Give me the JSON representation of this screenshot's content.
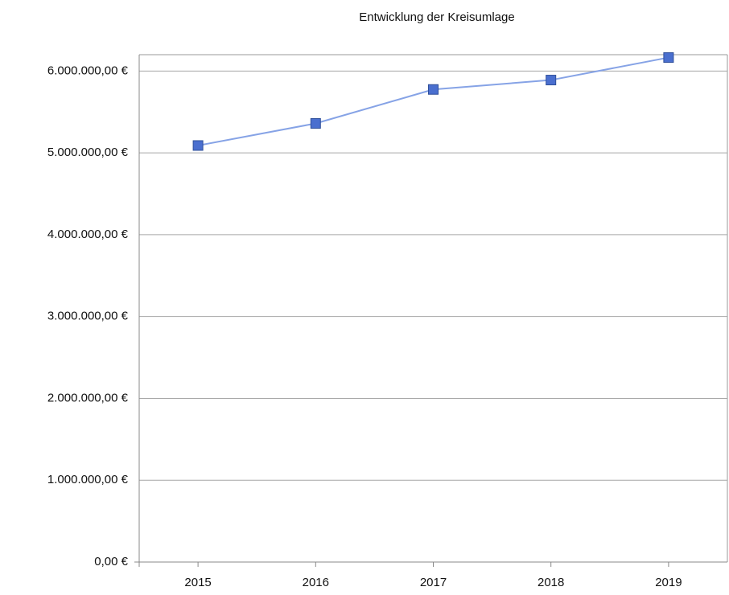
{
  "chart_data": {
    "type": "line",
    "title": "Entwicklung der Kreisumlage",
    "categories": [
      "2015",
      "2016",
      "2017",
      "2018",
      "2019"
    ],
    "series": [
      {
        "name": "Kreisumlage",
        "color": "#4a6fcf",
        "values": [
          5090000,
          5360000,
          5775000,
          5890000,
          6165000
        ]
      }
    ],
    "ylim": [
      0,
      6200000
    ],
    "yticks": [
      {
        "value": 0,
        "label": "0,00 €"
      },
      {
        "value": 1000000,
        "label": "1.000.000,00 €"
      },
      {
        "value": 2000000,
        "label": "2.000.000,00 €"
      },
      {
        "value": 3000000,
        "label": "3.000.000,00 €"
      },
      {
        "value": 4000000,
        "label": "4.000.000,00 €"
      },
      {
        "value": 5000000,
        "label": "5.000.000,00 €"
      },
      {
        "value": 6000000,
        "label": "6.000.000,00 €"
      }
    ],
    "grid": true
  }
}
